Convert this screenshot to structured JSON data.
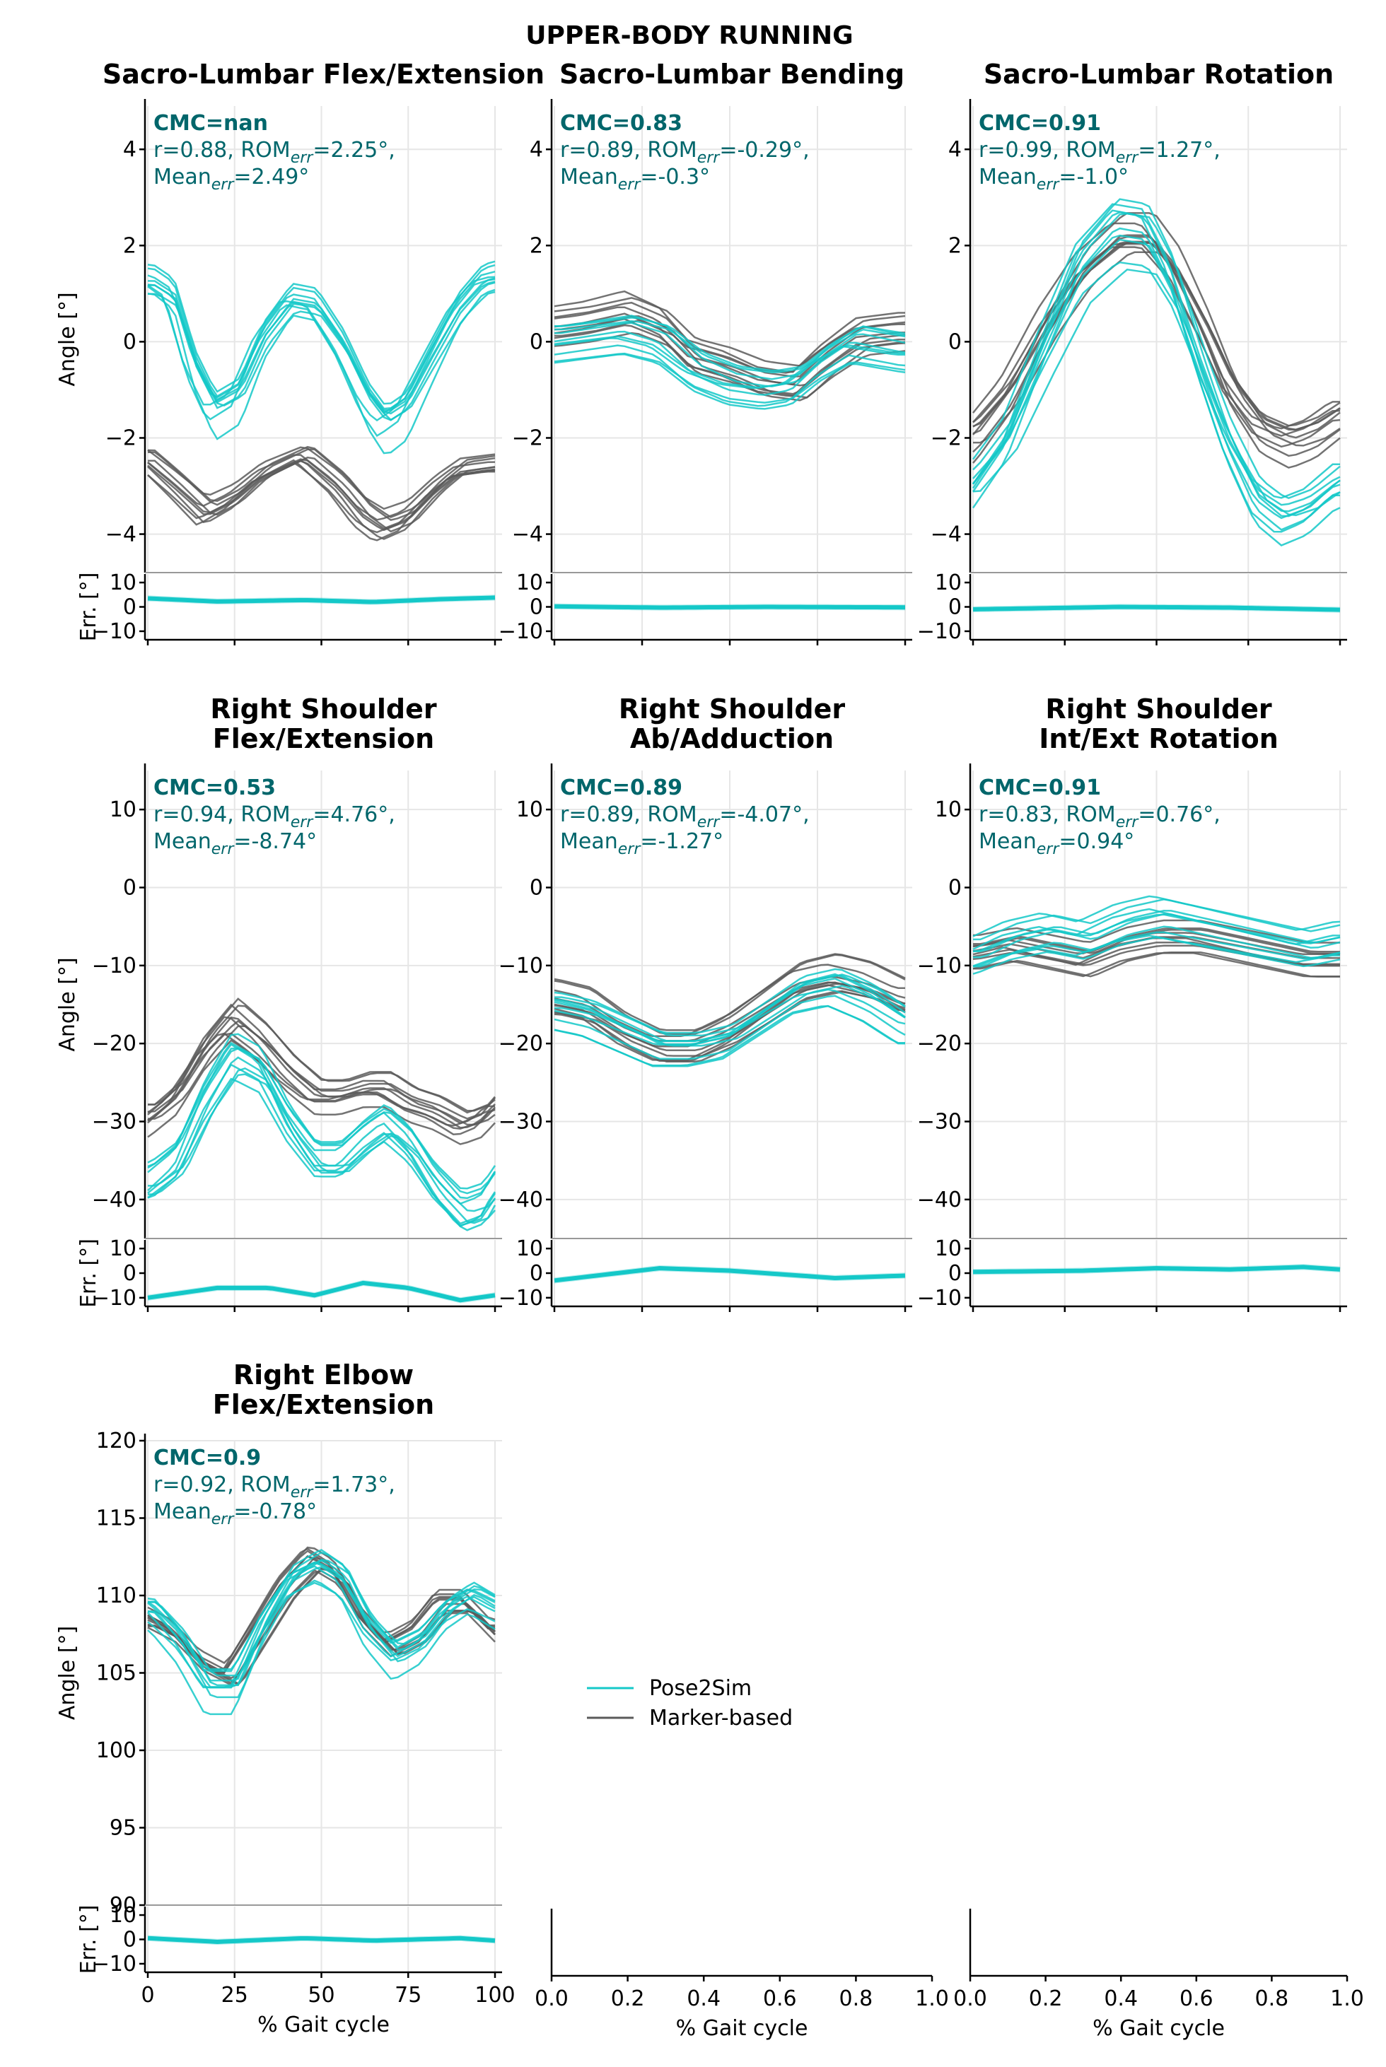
{
  "figure_title": "UPPER-BODY RUNNING",
  "colors": {
    "pose2sim": "#14c8c8",
    "marker": "#5a5a5a",
    "text_stat": "#00666b"
  },
  "chart_data": [
    {
      "type": "line",
      "title": [
        "Sacro-Lumbar Flex/Extension"
      ],
      "ylabel": "Angle [°]",
      "errlabel": "Err. [°]",
      "ylim": [
        -4.8,
        4.9
      ],
      "yticks": [
        -4,
        -2,
        0,
        2,
        4
      ],
      "cmc": "CMC=nan",
      "stats_line1": "r=0.88, ROMerr=2.25°,",
      "stats_line2": "Meanerr=2.49°",
      "pose2sim_curve": [
        [
          0,
          1.2
        ],
        [
          6,
          0.9
        ],
        [
          12,
          -0.6
        ],
        [
          18,
          -1.5
        ],
        [
          25,
          -1.2
        ],
        [
          32,
          0.0
        ],
        [
          40,
          0.8
        ],
        [
          47,
          0.7
        ],
        [
          55,
          -0.2
        ],
        [
          62,
          -1.3
        ],
        [
          67,
          -1.8
        ],
        [
          73,
          -1.5
        ],
        [
          80,
          -0.5
        ],
        [
          88,
          0.6
        ],
        [
          95,
          1.2
        ],
        [
          100,
          1.3
        ]
      ],
      "marker_curve": [
        [
          0,
          -2.3
        ],
        [
          8,
          -2.8
        ],
        [
          17,
          -3.4
        ],
        [
          25,
          -3.1
        ],
        [
          33,
          -2.6
        ],
        [
          45,
          -2.2
        ],
        [
          55,
          -2.8
        ],
        [
          62,
          -3.4
        ],
        [
          68,
          -3.7
        ],
        [
          75,
          -3.5
        ],
        [
          83,
          -2.9
        ],
        [
          90,
          -2.5
        ],
        [
          100,
          -2.4
        ]
      ],
      "n_trials": 10,
      "err_curve": [
        [
          0,
          3.5
        ],
        [
          20,
          2.2
        ],
        [
          45,
          2.8
        ],
        [
          65,
          2.0
        ],
        [
          85,
          3.2
        ],
        [
          100,
          3.8
        ]
      ]
    },
    {
      "type": "line",
      "title": [
        "Sacro-Lumbar Bending"
      ],
      "ylabel": "",
      "errlabel": "",
      "ylim": [
        -4.8,
        4.9
      ],
      "yticks": [
        -4,
        -2,
        0,
        2,
        4
      ],
      "cmc": "CMC=0.83",
      "stats_line1": "r=0.89, ROMerr=-0.29°,",
      "stats_line2": "Meanerr=-0.3°",
      "pose2sim_curve": [
        [
          0,
          0.0
        ],
        [
          10,
          0.1
        ],
        [
          20,
          0.2
        ],
        [
          30,
          0.0
        ],
        [
          40,
          -0.6
        ],
        [
          50,
          -0.9
        ],
        [
          60,
          -1.0
        ],
        [
          68,
          -0.9
        ],
        [
          76,
          -0.4
        ],
        [
          85,
          0.0
        ],
        [
          100,
          -0.2
        ]
      ],
      "marker_curve": [
        [
          0,
          0.3
        ],
        [
          10,
          0.4
        ],
        [
          22,
          0.6
        ],
        [
          32,
          0.3
        ],
        [
          40,
          -0.3
        ],
        [
          50,
          -0.5
        ],
        [
          60,
          -0.8
        ],
        [
          70,
          -0.9
        ],
        [
          78,
          -0.4
        ],
        [
          88,
          0.1
        ],
        [
          100,
          0.2
        ]
      ],
      "n_trials": 10,
      "err_curve": [
        [
          0,
          0.2
        ],
        [
          30,
          -0.3
        ],
        [
          60,
          0.0
        ],
        [
          100,
          -0.2
        ]
      ]
    },
    {
      "type": "line",
      "title": [
        "Sacro-Lumbar Rotation"
      ],
      "ylabel": "",
      "errlabel": "",
      "ylim": [
        -4.8,
        4.9
      ],
      "yticks": [
        -4,
        -2,
        0,
        2,
        4
      ],
      "cmc": "CMC=0.91",
      "stats_line1": "r=0.99, ROMerr=1.27°,",
      "stats_line2": "Meanerr=-1.0°",
      "pose2sim_curve": [
        [
          0,
          -3.0
        ],
        [
          10,
          -2.0
        ],
        [
          20,
          -0.2
        ],
        [
          30,
          1.5
        ],
        [
          40,
          2.3
        ],
        [
          48,
          2.2
        ],
        [
          55,
          1.2
        ],
        [
          63,
          -0.6
        ],
        [
          70,
          -2.0
        ],
        [
          78,
          -3.2
        ],
        [
          85,
          -3.6
        ],
        [
          92,
          -3.4
        ],
        [
          100,
          -2.9
        ]
      ],
      "marker_curve": [
        [
          0,
          -2.0
        ],
        [
          10,
          -1.0
        ],
        [
          20,
          0.5
        ],
        [
          30,
          1.7
        ],
        [
          40,
          2.4
        ],
        [
          48,
          2.4
        ],
        [
          55,
          1.7
        ],
        [
          63,
          0.4
        ],
        [
          70,
          -0.9
        ],
        [
          78,
          -1.8
        ],
        [
          86,
          -2.1
        ],
        [
          93,
          -1.9
        ],
        [
          100,
          -1.5
        ]
      ],
      "n_trials": 10,
      "err_curve": [
        [
          0,
          -1.0
        ],
        [
          40,
          0.0
        ],
        [
          70,
          -0.3
        ],
        [
          100,
          -1.2
        ]
      ]
    },
    {
      "type": "line",
      "title": [
        "Right Shoulder",
        "Flex/Extension"
      ],
      "ylabel": "Angle [°]",
      "errlabel": "Err. [°]",
      "ylim": [
        -45,
        15
      ],
      "yticks": [
        -40,
        -30,
        -20,
        -10,
        0,
        10
      ],
      "cmc": "CMC=0.53",
      "stats_line1": "r=0.94, ROMerr=4.76°,",
      "stats_line2": "Meanerr=-8.74°",
      "pose2sim_curve": [
        [
          0,
          -38
        ],
        [
          8,
          -35
        ],
        [
          16,
          -27
        ],
        [
          24,
          -21
        ],
        [
          32,
          -23
        ],
        [
          40,
          -30
        ],
        [
          48,
          -35
        ],
        [
          55,
          -35
        ],
        [
          62,
          -32
        ],
        [
          68,
          -30
        ],
        [
          75,
          -33
        ],
        [
          82,
          -38
        ],
        [
          90,
          -42
        ],
        [
          96,
          -41
        ],
        [
          100,
          -38
        ]
      ],
      "marker_curve": [
        [
          0,
          -30
        ],
        [
          8,
          -27
        ],
        [
          16,
          -21
        ],
        [
          24,
          -17
        ],
        [
          32,
          -20
        ],
        [
          40,
          -24
        ],
        [
          48,
          -27
        ],
        [
          55,
          -27
        ],
        [
          62,
          -26
        ],
        [
          68,
          -26
        ],
        [
          75,
          -28
        ],
        [
          82,
          -29
        ],
        [
          90,
          -31
        ],
        [
          96,
          -30
        ],
        [
          100,
          -28
        ]
      ],
      "n_trials": 10,
      "err_curve": [
        [
          0,
          -10
        ],
        [
          20,
          -6
        ],
        [
          35,
          -6
        ],
        [
          48,
          -9
        ],
        [
          62,
          -4
        ],
        [
          75,
          -6
        ],
        [
          90,
          -11
        ],
        [
          100,
          -9
        ]
      ]
    },
    {
      "type": "line",
      "title": [
        "Right Shoulder",
        "Ab/Adduction"
      ],
      "ylabel": "",
      "errlabel": "",
      "ylim": [
        -45,
        15
      ],
      "yticks": [
        -40,
        -30,
        -20,
        -10,
        0,
        10
      ],
      "cmc": "CMC=0.89",
      "stats_line1": "r=0.89, ROMerr=-4.07°,",
      "stats_line2": "Meanerr=-1.27°",
      "pose2sim_curve": [
        [
          0,
          -16
        ],
        [
          10,
          -17
        ],
        [
          20,
          -19
        ],
        [
          30,
          -21
        ],
        [
          40,
          -21
        ],
        [
          50,
          -20
        ],
        [
          60,
          -17
        ],
        [
          70,
          -14
        ],
        [
          80,
          -13
        ],
        [
          90,
          -15
        ],
        [
          100,
          -18
        ]
      ],
      "marker_curve": [
        [
          0,
          -14
        ],
        [
          10,
          -15
        ],
        [
          20,
          -18
        ],
        [
          30,
          -20
        ],
        [
          40,
          -20
        ],
        [
          50,
          -18
        ],
        [
          60,
          -15
        ],
        [
          70,
          -12
        ],
        [
          80,
          -11
        ],
        [
          90,
          -12
        ],
        [
          100,
          -14
        ]
      ],
      "n_trials": 10,
      "err_curve": [
        [
          0,
          -3
        ],
        [
          30,
          2
        ],
        [
          50,
          1
        ],
        [
          80,
          -2
        ],
        [
          100,
          -1
        ]
      ]
    },
    {
      "type": "line",
      "title": [
        "Right Shoulder",
        "Int/Ext Rotation"
      ],
      "ylabel": "",
      "errlabel": "",
      "ylim": [
        -45,
        15
      ],
      "yticks": [
        -40,
        -30,
        -20,
        -10,
        0,
        10
      ],
      "cmc": "CMC=0.91",
      "stats_line1": "r=0.83, ROMerr=0.76°,",
      "stats_line2": "Meanerr=0.94°",
      "pose2sim_curve": [
        [
          0,
          -9
        ],
        [
          10,
          -7
        ],
        [
          20,
          -6
        ],
        [
          30,
          -7
        ],
        [
          40,
          -5
        ],
        [
          50,
          -4
        ],
        [
          60,
          -5
        ],
        [
          70,
          -6
        ],
        [
          80,
          -7
        ],
        [
          90,
          -8
        ],
        [
          100,
          -7
        ]
      ],
      "marker_curve": [
        [
          0,
          -8
        ],
        [
          10,
          -7
        ],
        [
          20,
          -8
        ],
        [
          30,
          -9
        ],
        [
          40,
          -7
        ],
        [
          50,
          -6
        ],
        [
          60,
          -6
        ],
        [
          70,
          -7
        ],
        [
          80,
          -8
        ],
        [
          90,
          -9
        ],
        [
          100,
          -9
        ]
      ],
      "n_trials": 10,
      "err_curve": [
        [
          0,
          0.5
        ],
        [
          30,
          1.0
        ],
        [
          50,
          2.0
        ],
        [
          70,
          1.5
        ],
        [
          90,
          2.5
        ],
        [
          100,
          1.5
        ]
      ]
    },
    {
      "type": "line",
      "title": [
        "Right Elbow",
        "Flex/Extension"
      ],
      "ylabel": "Angle [°]",
      "errlabel": "Err. [°]",
      "ylim": [
        90,
        120
      ],
      "yticks": [
        90,
        95,
        100,
        105,
        110,
        115,
        120
      ],
      "cmc": "CMC=0.9",
      "stats_line1": "r=0.92, ROMerr=1.73°,",
      "stats_line2": "Meanerr=-0.78°",
      "pose2sim_curve": [
        [
          0,
          109
        ],
        [
          8,
          107
        ],
        [
          16,
          104
        ],
        [
          24,
          104
        ],
        [
          32,
          108
        ],
        [
          40,
          111
        ],
        [
          48,
          112
        ],
        [
          55,
          111
        ],
        [
          62,
          108
        ],
        [
          70,
          106
        ],
        [
          78,
          107
        ],
        [
          85,
          109
        ],
        [
          92,
          110
        ],
        [
          100,
          109
        ]
      ],
      "marker_curve": [
        [
          0,
          109
        ],
        [
          8,
          108
        ],
        [
          16,
          106
        ],
        [
          24,
          105
        ],
        [
          32,
          108
        ],
        [
          40,
          111
        ],
        [
          48,
          113
        ],
        [
          55,
          112
        ],
        [
          62,
          109
        ],
        [
          70,
          107
        ],
        [
          78,
          108
        ],
        [
          85,
          110
        ],
        [
          92,
          110
        ],
        [
          100,
          108
        ]
      ],
      "n_trials": 10,
      "err_curve": [
        [
          0,
          0.5
        ],
        [
          20,
          -1.0
        ],
        [
          45,
          0.5
        ],
        [
          65,
          -0.5
        ],
        [
          90,
          0.5
        ],
        [
          100,
          -0.5
        ]
      ]
    }
  ],
  "empty_axes": {
    "xticks": [
      "0.0",
      "0.2",
      "0.4",
      "0.6",
      "0.8",
      "1.0"
    ],
    "xlabel": "% Gait cycle"
  },
  "gait_axis": {
    "xticks": [
      "0",
      "25",
      "50",
      "75",
      "100"
    ],
    "xlabel": "% Gait cycle"
  },
  "err_yticks": [
    "10",
    "0",
    "−10"
  ],
  "legend": [
    {
      "label": "Pose2Sim",
      "color_key": "pose2sim"
    },
    {
      "label": "Marker-based",
      "color_key": "marker"
    }
  ]
}
